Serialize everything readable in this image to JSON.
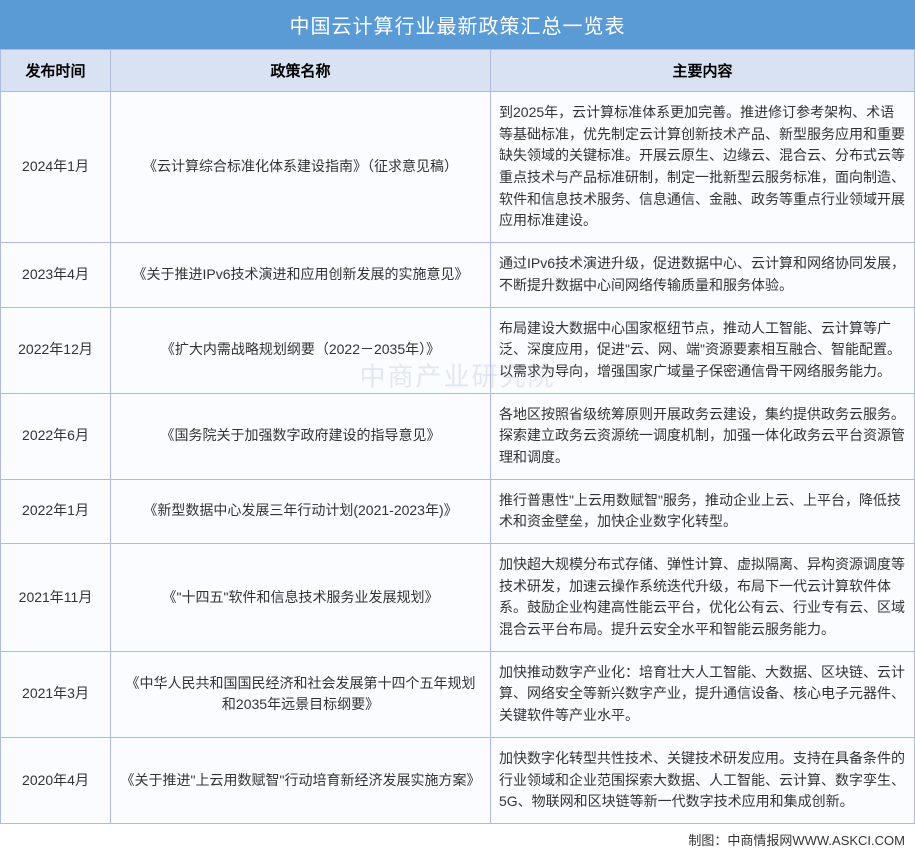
{
  "title": "中国云计算行业最新政策汇总一览表",
  "table": {
    "columns": [
      "发布时间",
      "政策名称",
      "主要内容"
    ],
    "column_widths": [
      "110px",
      "380px",
      "auto"
    ],
    "header_bg": "#d9e2f3",
    "title_bg": "#5b9bd5",
    "title_color": "#ffffff",
    "border_color": "#a8bde0",
    "cell_bg": "#fafcff",
    "font_size_header": 15,
    "font_size_cell": 14,
    "rows": [
      {
        "date": "2024年1月",
        "name": "《云计算综合标准化体系建设指南》（征求意见稿）",
        "content": "到2025年，云计算标准体系更加完善。推进修订参考架构、术语等基础标准，优先制定云计算创新技术产品、新型服务应用和重要缺失领域的关键标准。开展云原生、边缘云、混合云、分布式云等重点技术与产品标准研制，制定一批新型云服务标准，面向制造、软件和信息技术服务、信息通信、金融、政务等重点行业领域开展应用标准建设。"
      },
      {
        "date": "2023年4月",
        "name": "《关于推进IPv6技术演进和应用创新发展的实施意见》",
        "content": "通过IPv6技术演进升级，促进数据中心、云计算和网络协同发展，不断提升数据中心间网络传输质量和服务体验。"
      },
      {
        "date": "2022年12月",
        "name": "《扩大内需战略规划纲要（2022－2035年）》",
        "content": "布局建设大数据中心国家枢纽节点，推动人工智能、云计算等广泛、深度应用，促进\"云、网、端\"资源要素相互融合、智能配置。以需求为导向，增强国家广域量子保密通信骨干网络服务能力。"
      },
      {
        "date": "2022年6月",
        "name": "《国务院关于加强数字政府建设的指导意见》",
        "content": "各地区按照省级统筹原则开展政务云建设，集约提供政务云服务。探索建立政务云资源统一调度机制，加强一体化政务云平台资源管理和调度。"
      },
      {
        "date": "2022年1月",
        "name": "《新型数据中心发展三年行动计划(2021-2023年)》",
        "content": "推行普惠性\"上云用数赋智\"服务，推动企业上云、上平台，降低技术和资金壁垒，加快企业数字化转型。"
      },
      {
        "date": "2021年11月",
        "name": "《\"十四五\"软件和信息技术服务业发展规划》",
        "content": "加快超大规模分布式存储、弹性计算、虚拟隔离、异构资源调度等技术研发，加速云操作系统迭代升级，布局下一代云计算软件体系。鼓励企业构建高性能云平台，优化公有云、行业专有云、区域混合云平台布局。提升云安全水平和智能云服务能力。"
      },
      {
        "date": "2021年3月",
        "name": "《中华人民共和国国民经济和社会发展第十四个五年规划和2035年远景目标纲要》",
        "content": "加快推动数字产业化：培育壮大人工智能、大数据、区块链、云计算、网络安全等新兴数字产业，提升通信设备、核心电子元器件、关键软件等产业水平。"
      },
      {
        "date": "2020年4月",
        "name": "《关于推进\"上云用数赋智\"行动培育新经济发展实施方案》",
        "content": "加快数字化转型共性技术、关键技术研发应用。支持在具备条件的行业领域和企业范围探索大数据、人工智能、云计算、数字孪生、5G、物联网和区块链等新一代数字技术应用和集成创新。"
      }
    ]
  },
  "watermark": "中商产业研究院",
  "footer": "制图：中商情报网WWW.ASKCI.COM"
}
